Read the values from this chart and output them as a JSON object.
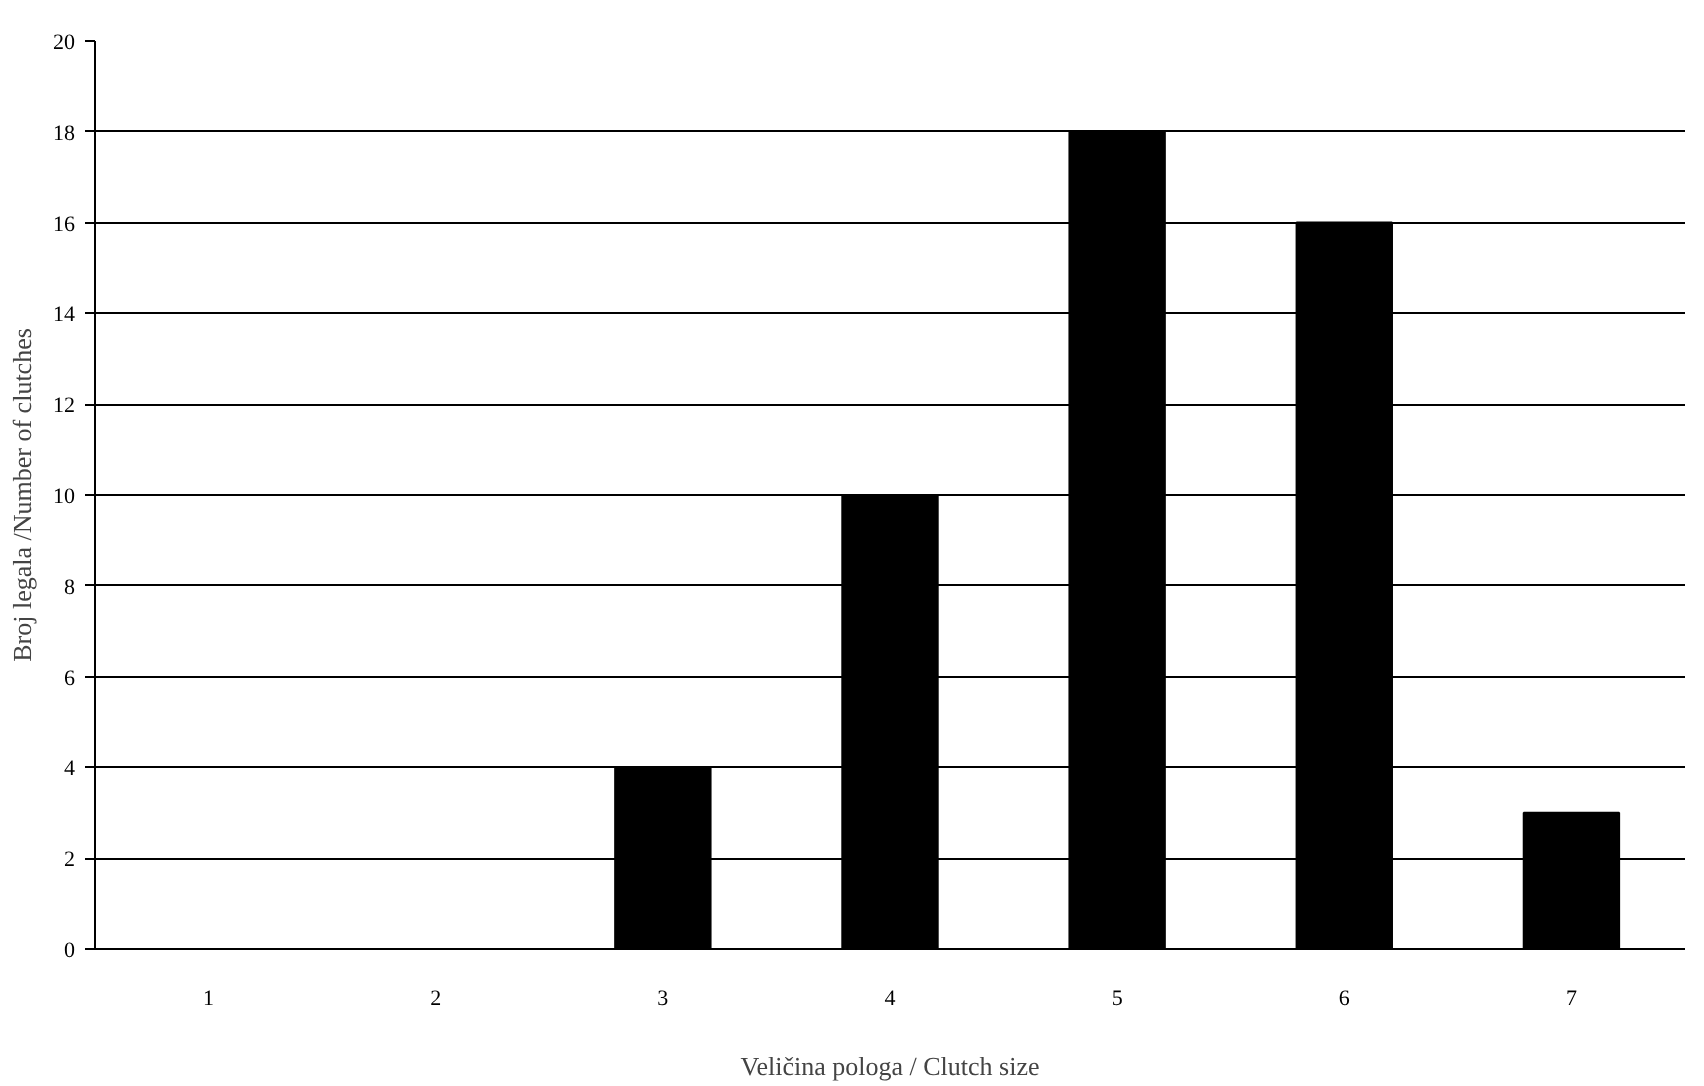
{
  "chart_data": {
    "type": "bar",
    "categories": [
      "1",
      "2",
      "3",
      "4",
      "5",
      "6",
      "7"
    ],
    "values": [
      0,
      0,
      4,
      10,
      18,
      16,
      3
    ],
    "color": "#000000",
    "ylim": [
      0,
      20
    ],
    "yticks": [
      0,
      2,
      4,
      6,
      8,
      10,
      12,
      14,
      16,
      18,
      20
    ],
    "grid": "y",
    "xlabel": "Veličina pologa / Clutch size",
    "ylabel": "Broj legala /Number of clutches"
  }
}
